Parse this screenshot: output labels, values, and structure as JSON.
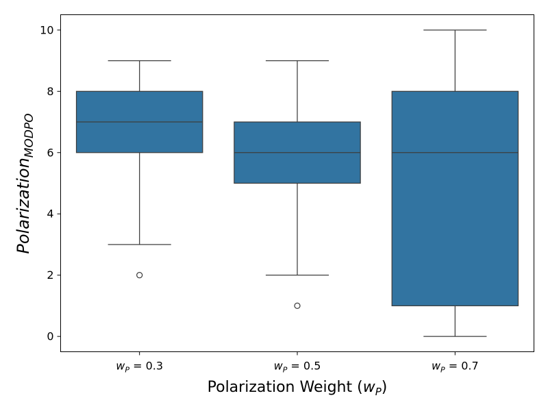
{
  "chart_data": {
    "type": "box",
    "title": "",
    "categories": [
      {
        "var": "w",
        "sub": "P",
        "value": "0.3"
      },
      {
        "var": "w",
        "sub": "P",
        "value": "0.5"
      },
      {
        "var": "w",
        "sub": "P",
        "value": "0.7"
      }
    ],
    "series": [
      {
        "name": "wP=0.3",
        "whisker_low": 3,
        "q1": 6,
        "median": 7,
        "q3": 8,
        "whisker_high": 9,
        "outliers": [
          2
        ]
      },
      {
        "name": "wP=0.5",
        "whisker_low": 2,
        "q1": 5,
        "median": 6,
        "q3": 7,
        "whisker_high": 9,
        "outliers": [
          1
        ]
      },
      {
        "name": "wP=0.7",
        "whisker_low": 0,
        "q1": 1,
        "median": 6,
        "q3": 8,
        "whisker_high": 10,
        "outliers": []
      }
    ],
    "xlabel": {
      "text": "Polarization Weight (",
      "var": "w",
      "sub": "P",
      "close": ")"
    },
    "ylabel": {
      "text": "Polarization",
      "sub": "MODPO"
    },
    "ylim": [
      -0.5,
      10.5
    ],
    "yticks": [
      "0",
      "2",
      "4",
      "6",
      "8",
      "10"
    ],
    "grid": false,
    "colors": {
      "box": "#3274a1",
      "line": "#3d3d3d",
      "axis": "#000000"
    }
  }
}
